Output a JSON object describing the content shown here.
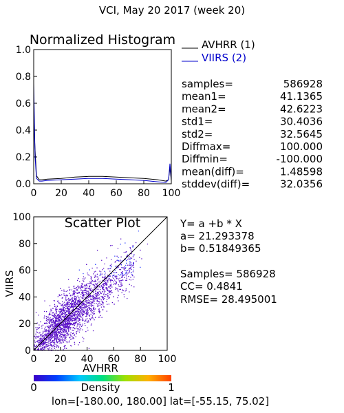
{
  "header": {
    "title": "VCI,  May 20 2017 (week 20)"
  },
  "chart_data": [
    {
      "type": "line",
      "title": "Normalized Histogram",
      "xlabel": "",
      "ylabel": "",
      "xlim": [
        0,
        100
      ],
      "ylim": [
        0,
        1
      ],
      "x_ticks": [
        "0",
        "20",
        "40",
        "60",
        "80",
        "100"
      ],
      "y_ticks": [
        "0.0",
        "0.2",
        "0.4",
        "0.6",
        "0.8",
        "1.0"
      ],
      "legend": {
        "placement": "right",
        "entries": [
          {
            "label": "AVHRR (1)",
            "color": "#000000"
          },
          {
            "label": "VIIRS (2)",
            "color": "#0000cc"
          }
        ]
      },
      "series": [
        {
          "name": "AVHRR (1)",
          "color": "#000000",
          "x": [
            0,
            1,
            2,
            4,
            6,
            10,
            20,
            30,
            40,
            50,
            60,
            70,
            80,
            90,
            96,
            98,
            99,
            100
          ],
          "values": [
            0.48,
            0.25,
            0.06,
            0.03,
            0.03,
            0.035,
            0.04,
            0.05,
            0.055,
            0.055,
            0.05,
            0.045,
            0.04,
            0.03,
            0.02,
            0.03,
            0.12,
            0.02
          ]
        },
        {
          "name": "VIIRS (2)",
          "color": "#0000cc",
          "x": [
            0,
            1,
            2,
            4,
            6,
            10,
            20,
            30,
            40,
            50,
            60,
            70,
            80,
            90,
            96,
            98,
            99,
            100
          ],
          "values": [
            0.75,
            0.2,
            0.04,
            0.02,
            0.02,
            0.025,
            0.03,
            0.035,
            0.04,
            0.04,
            0.035,
            0.03,
            0.025,
            0.015,
            0.01,
            0.03,
            0.15,
            0.03
          ]
        }
      ]
    },
    {
      "type": "scatter",
      "title": "Scatter Plot",
      "xlabel": "AVHRR",
      "ylabel": "VIIRS",
      "xlim": [
        0,
        100
      ],
      "ylim": [
        0,
        100
      ],
      "x_ticks": [
        "0",
        "20",
        "40",
        "60",
        "80",
        "100"
      ],
      "y_ticks": [
        "0",
        "20",
        "40",
        "60",
        "80",
        "100"
      ],
      "diagonal_line": true,
      "point_color": "#5a10c8",
      "colorbar": {
        "label": "Density",
        "min_label": "0",
        "max_label": "1",
        "colors": [
          "#3a00c8",
          "#0040ff",
          "#00c8ff",
          "#00e080",
          "#a0e000",
          "#ffb000",
          "#ff4000"
        ]
      },
      "regression": {
        "intercept": 21.293378,
        "slope": 0.51849365
      }
    }
  ],
  "stats": [
    {
      "label": "samples=",
      "value": "586928"
    },
    {
      "label": "mean1=",
      "value": "41.1365"
    },
    {
      "label": "mean2=",
      "value": "42.6223"
    },
    {
      "label": "std1=",
      "value": "30.4036"
    },
    {
      "label": "std2=",
      "value": "32.5645"
    },
    {
      "label": "Diffmax=",
      "value": "100.000"
    },
    {
      "label": "Diffmin=",
      "value": "-100.000"
    },
    {
      "label": "mean(diff)=",
      "value": "1.48598"
    },
    {
      "label": "stddev(diff)=",
      "value": "32.0356"
    }
  ],
  "regression_text": {
    "equation": "Y= a +b * X",
    "a": "a= 21.293378",
    "b": "b= 0.51849365",
    "samples": "Samples= 586928",
    "cc": "CC=  0.4841",
    "rmse": "RMSE= 28.495001"
  },
  "footer": {
    "range": "lon=[-180.00, 180.00] lat=[-55.15, 75.02]"
  }
}
